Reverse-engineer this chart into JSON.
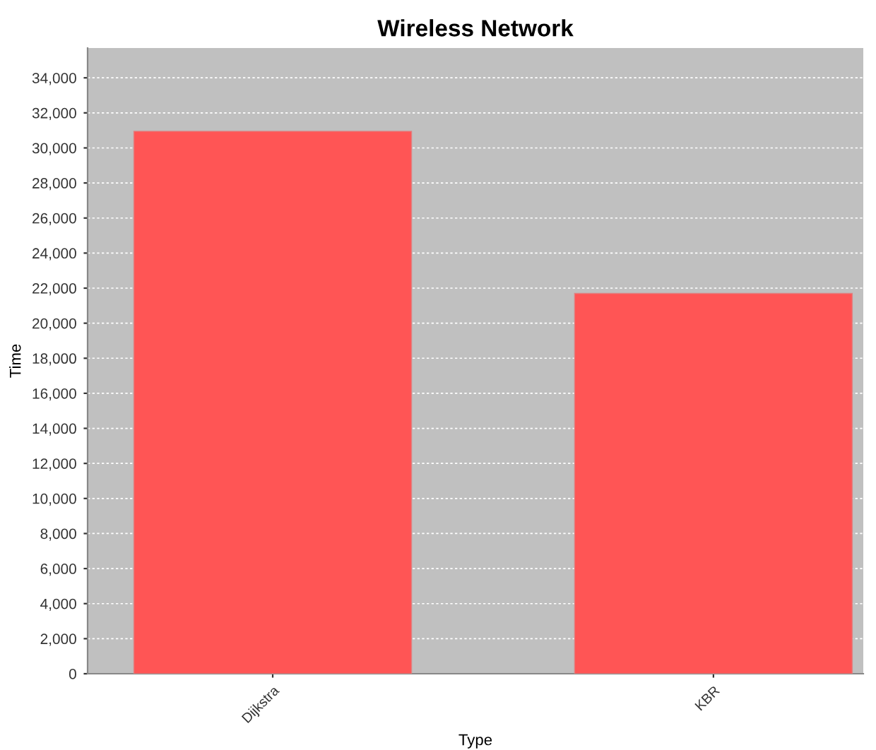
{
  "chart_data": {
    "type": "bar",
    "title": "Wireless Network",
    "xlabel": "Type",
    "ylabel": "Time",
    "categories": [
      "Dijkstra",
      "KBR"
    ],
    "series": [
      {
        "color": "#ff5555",
        "values": [
          30950,
          21700
        ]
      }
    ],
    "ylim": [
      0,
      35700
    ],
    "yticks": [
      {
        "value": 0,
        "label": "0"
      },
      {
        "value": 2000,
        "label": "2,000"
      },
      {
        "value": 4000,
        "label": "4,000"
      },
      {
        "value": 6000,
        "label": "6,000"
      },
      {
        "value": 8000,
        "label": "8,000"
      },
      {
        "value": 10000,
        "label": "10,000"
      },
      {
        "value": 12000,
        "label": "12,000"
      },
      {
        "value": 14000,
        "label": "14,000"
      },
      {
        "value": 16000,
        "label": "16,000"
      },
      {
        "value": 18000,
        "label": "18,000"
      },
      {
        "value": 20000,
        "label": "20,000"
      },
      {
        "value": 22000,
        "label": "22,000"
      },
      {
        "value": 24000,
        "label": "24,000"
      },
      {
        "value": 26000,
        "label": "26,000"
      },
      {
        "value": 28000,
        "label": "28,000"
      },
      {
        "value": 30000,
        "label": "30,000"
      },
      {
        "value": 32000,
        "label": "32,000"
      },
      {
        "value": 34000,
        "label": "34,000"
      }
    ],
    "grid": "y",
    "legend": false
  }
}
